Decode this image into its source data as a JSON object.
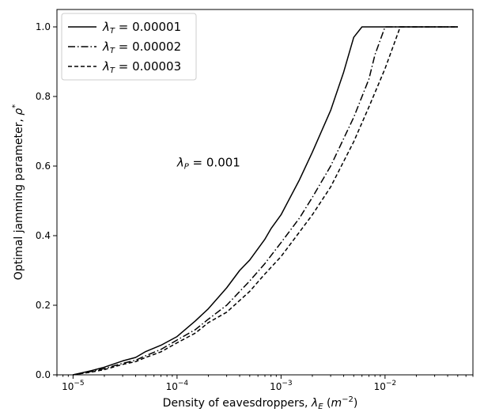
{
  "chart_data": {
    "type": "line",
    "xlabel": "Density of eavesdroppers, λ_E (m^-2)",
    "ylabel": "Optimal jamming parameter, ρ*",
    "xscale": "log",
    "xlim": [
      7e-06,
      0.07
    ],
    "ylim": [
      0,
      1.05
    ],
    "grid": false,
    "legend_position": "top-left",
    "x_ticks": [
      1e-05,
      0.0001,
      0.001,
      0.01
    ],
    "y_ticks": [
      0.0,
      0.2,
      0.4,
      0.6,
      0.8,
      1.0
    ],
    "y_tick_labels": [
      "0.0",
      "0.2",
      "0.4",
      "0.6",
      "0.8",
      "1.0"
    ],
    "annotation": {
      "text": "λ_P = 0.001",
      "x": 0.0001,
      "y": 0.61
    },
    "series": [
      {
        "name": "λ_T = 0.00001",
        "dash": "solid",
        "x": [
          1e-05,
          1.5e-05,
          2e-05,
          3e-05,
          4e-05,
          5e-05,
          7e-05,
          0.0001,
          0.00015,
          0.0002,
          0.0003,
          0.0004,
          0.0005,
          0.0007,
          0.0008,
          0.001,
          0.0015,
          0.002,
          0.003,
          0.004,
          0.005,
          0.006,
          0.01,
          0.02,
          0.05
        ],
        "y": [
          0.0,
          0.012,
          0.022,
          0.04,
          0.05,
          0.067,
          0.085,
          0.11,
          0.155,
          0.19,
          0.25,
          0.3,
          0.33,
          0.39,
          0.42,
          0.46,
          0.56,
          0.64,
          0.76,
          0.87,
          0.97,
          1.0,
          1.0,
          1.0,
          1.0
        ]
      },
      {
        "name": "λ_T = 0.00002",
        "dash": "dashdot",
        "x": [
          1e-05,
          1.5e-05,
          2e-05,
          3e-05,
          4e-05,
          5e-05,
          7e-05,
          0.0001,
          0.00015,
          0.0002,
          0.0003,
          0.0005,
          0.0007,
          0.001,
          0.0015,
          0.002,
          0.003,
          0.005,
          0.007,
          0.008,
          0.01,
          0.02,
          0.05
        ],
        "y": [
          0.0,
          0.01,
          0.018,
          0.033,
          0.042,
          0.055,
          0.073,
          0.1,
          0.13,
          0.16,
          0.2,
          0.27,
          0.32,
          0.38,
          0.45,
          0.51,
          0.6,
          0.74,
          0.85,
          0.92,
          1.0,
          1.0,
          1.0
        ]
      },
      {
        "name": "λ_T = 0.00003",
        "dash": "dashed",
        "x": [
          1e-05,
          1.5e-05,
          2e-05,
          3e-05,
          4e-05,
          5e-05,
          7e-05,
          0.0001,
          0.00015,
          0.0002,
          0.0003,
          0.0005,
          0.0007,
          0.001,
          0.0015,
          0.002,
          0.003,
          0.005,
          0.007,
          0.01,
          0.014,
          0.02,
          0.05
        ],
        "y": [
          0.0,
          0.008,
          0.015,
          0.03,
          0.038,
          0.05,
          0.066,
          0.092,
          0.12,
          0.15,
          0.18,
          0.24,
          0.29,
          0.34,
          0.41,
          0.46,
          0.54,
          0.67,
          0.77,
          0.88,
          1.0,
          1.0,
          1.0
        ]
      }
    ]
  }
}
